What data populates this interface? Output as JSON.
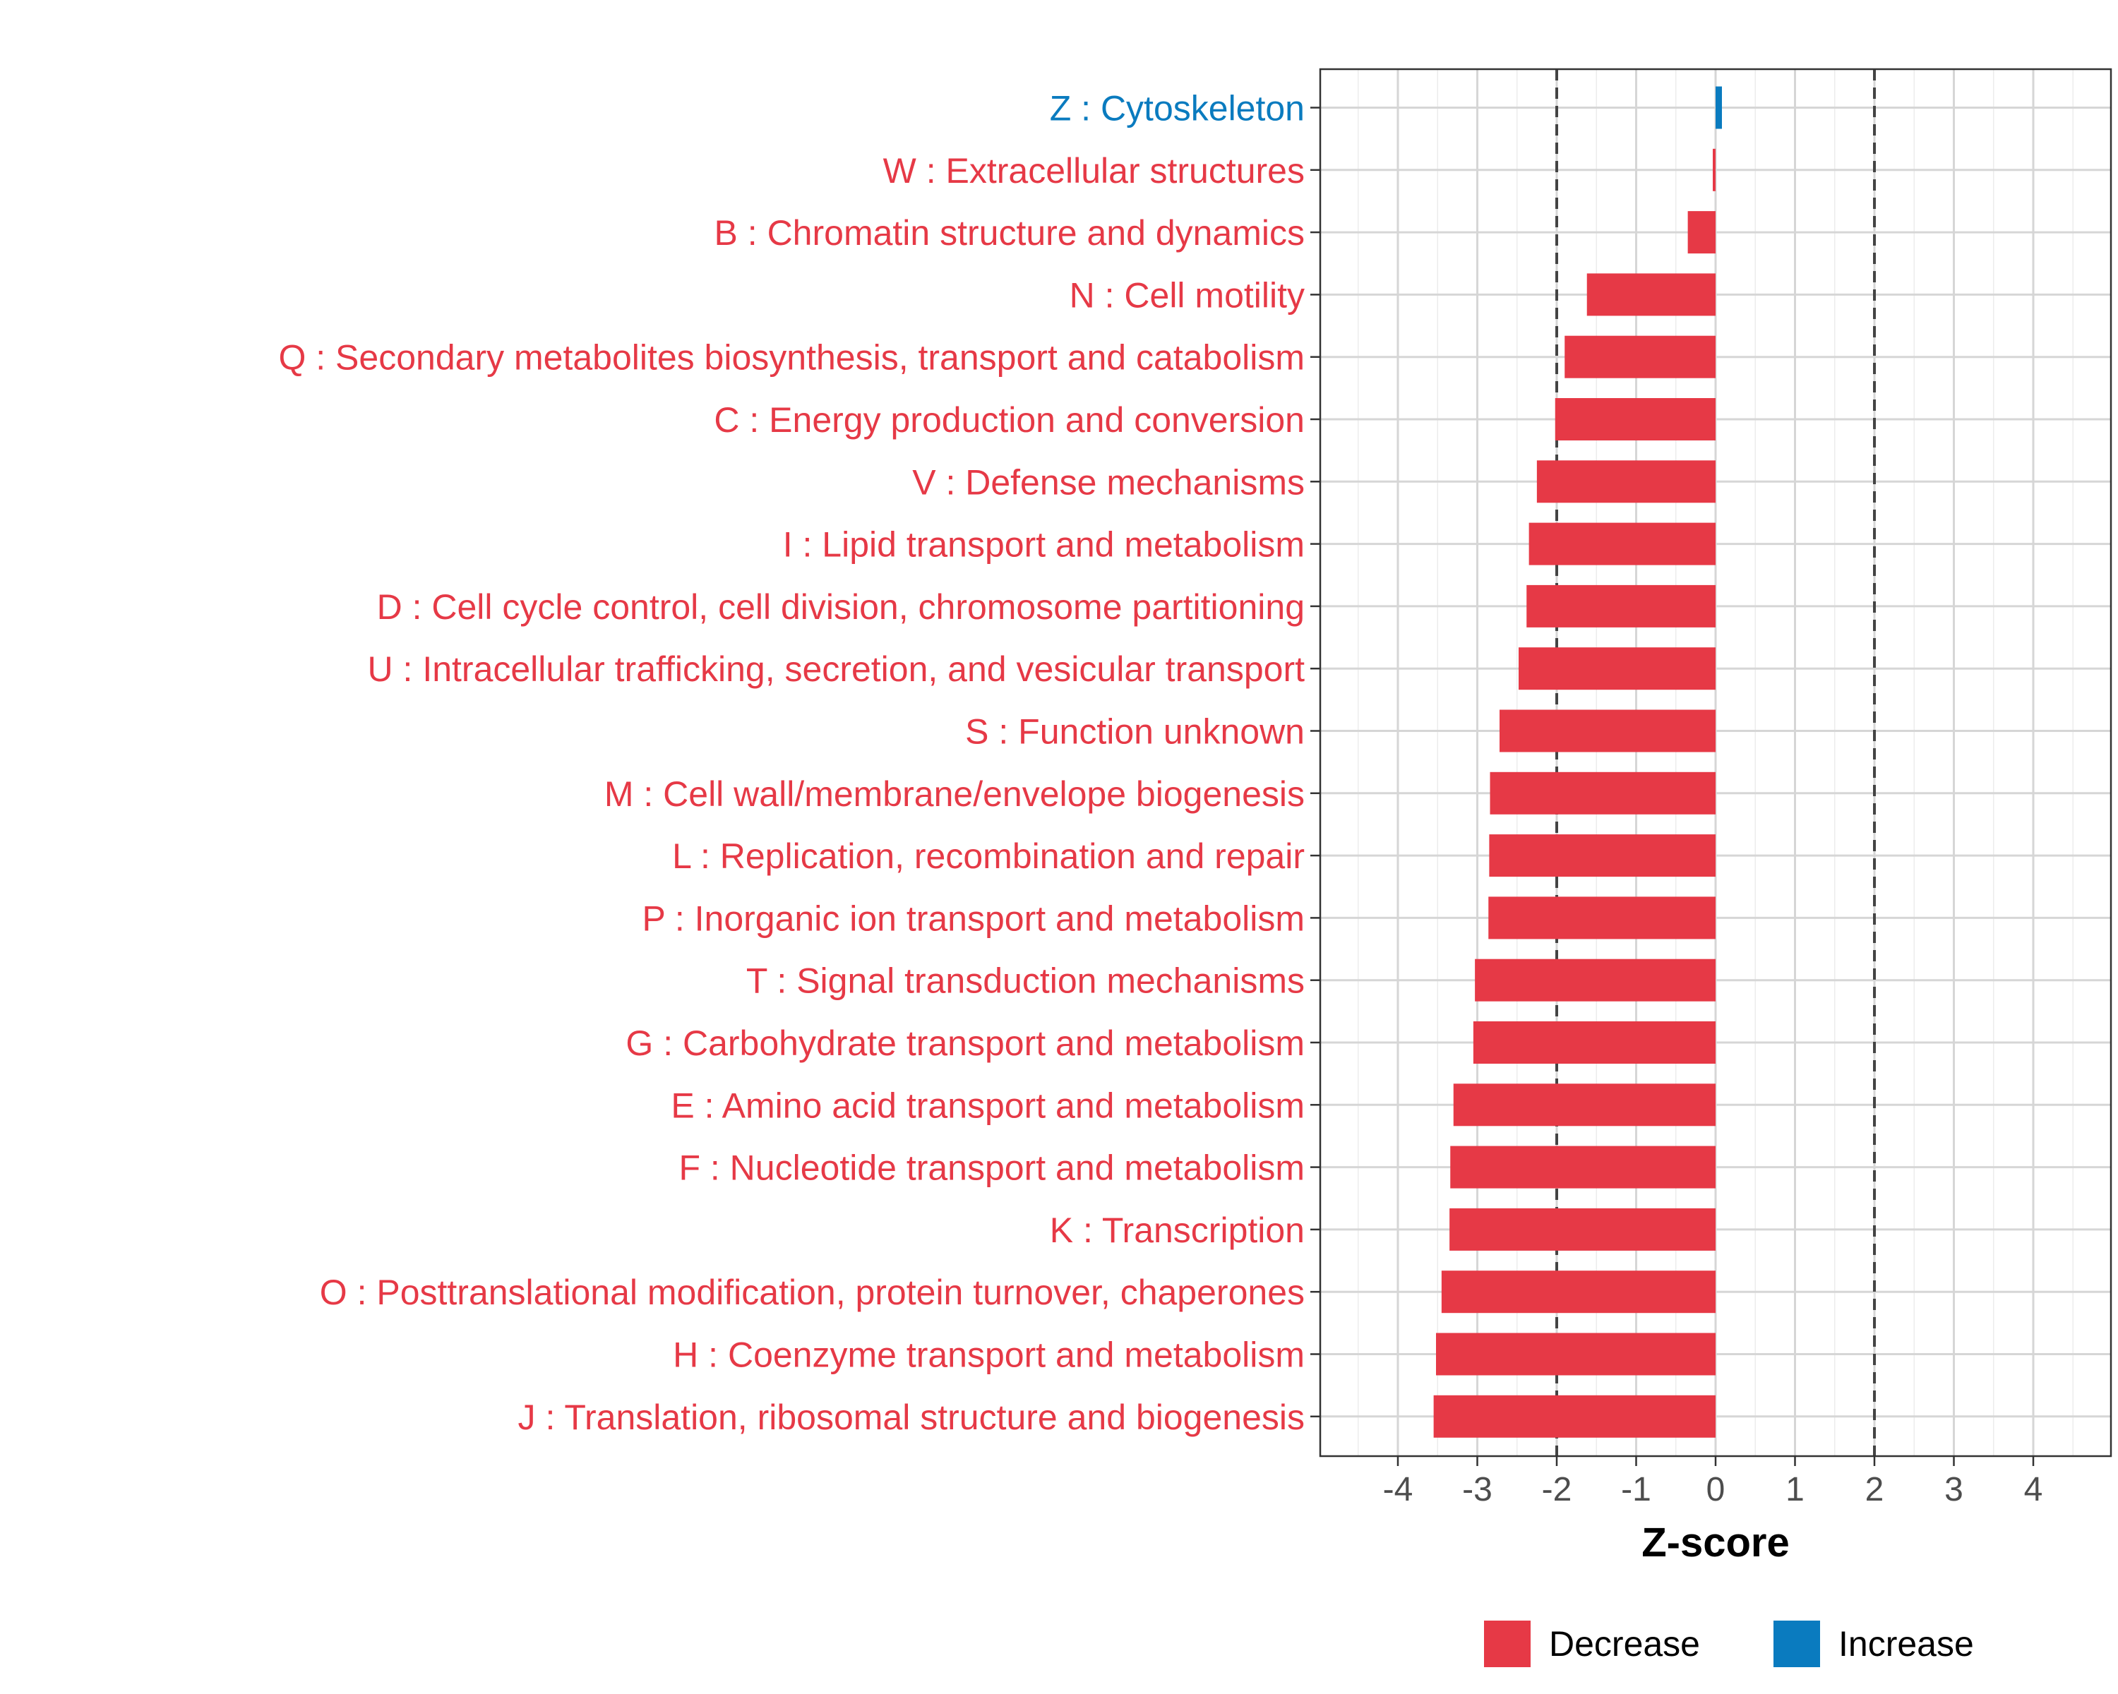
{
  "chart_data": {
    "type": "bar",
    "orientation": "horizontal",
    "title": "",
    "xlabel": "Z-score",
    "ylabel": "",
    "xlim": [
      -5,
      5
    ],
    "xticks": [
      -4,
      -3,
      -2,
      -1,
      0,
      1,
      2,
      3,
      4
    ],
    "xtick_labels": [
      "-4",
      "-3",
      "-2",
      "-1",
      "0",
      "1",
      "2",
      "3",
      "4"
    ],
    "reference_lines": [
      -2,
      2
    ],
    "grid": true,
    "colors": {
      "Decrease": "#e63946",
      "Increase": "#0a7bbf"
    },
    "legend": {
      "position": "bottom",
      "entries": [
        {
          "label": "Decrease",
          "color": "#e63946"
        },
        {
          "label": "Increase",
          "color": "#0a7bbf"
        }
      ]
    },
    "categories": [
      "Z : Cytoskeleton",
      "W : Extracellular structures",
      "B : Chromatin structure and dynamics",
      "N : Cell motility",
      "Q : Secondary metabolites biosynthesis, transport and catabolism",
      "C : Energy production and conversion",
      "V : Defense mechanisms",
      "I : Lipid transport and metabolism",
      "D : Cell cycle control, cell division, chromosome partitioning",
      "U : Intracellular trafficking, secretion, and vesicular transport",
      "S : Function unknown",
      "M : Cell wall/membrane/envelope biogenesis",
      "L : Replication, recombination and repair",
      "P : Inorganic ion transport and metabolism",
      "T : Signal transduction mechanisms",
      "G : Carbohydrate transport and metabolism",
      "E : Amino acid transport and metabolism",
      "F : Nucleotide transport and metabolism",
      "K : Transcription",
      "O : Posttranslational modification, protein turnover, chaperones",
      "H : Coenzyme transport and metabolism",
      "J : Translation, ribosomal structure and biogenesis"
    ],
    "values": [
      0.08,
      -0.03,
      -0.35,
      -1.62,
      -1.9,
      -2.02,
      -2.25,
      -2.35,
      -2.38,
      -2.48,
      -2.72,
      -2.84,
      -2.85,
      -2.86,
      -3.03,
      -3.05,
      -3.3,
      -3.34,
      -3.35,
      -3.45,
      -3.52,
      -3.55
    ],
    "direction": [
      "Increase",
      "Decrease",
      "Decrease",
      "Decrease",
      "Decrease",
      "Decrease",
      "Decrease",
      "Decrease",
      "Decrease",
      "Decrease",
      "Decrease",
      "Decrease",
      "Decrease",
      "Decrease",
      "Decrease",
      "Decrease",
      "Decrease",
      "Decrease",
      "Decrease",
      "Decrease",
      "Decrease",
      "Decrease"
    ]
  }
}
